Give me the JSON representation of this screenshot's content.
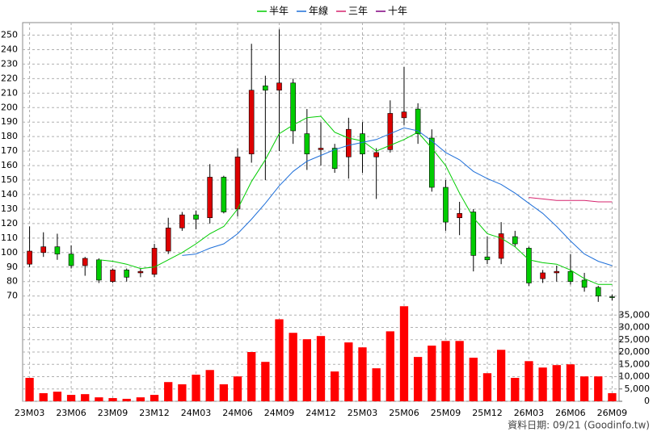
{
  "chart_data": {
    "type": "candlestick",
    "categories": [
      "23M03",
      null,
      null,
      "23M06",
      null,
      null,
      "23M09",
      null,
      null,
      "23M12",
      null,
      null,
      "24M03",
      null,
      null,
      "24M06",
      null,
      null,
      "24M09",
      null,
      null,
      "24M12",
      null,
      null,
      "25M03",
      null,
      null,
      "25M06",
      null,
      null,
      "25M09",
      null,
      null,
      "25M12",
      null,
      null,
      "26M03",
      null,
      null,
      "26M06",
      null,
      null,
      "26M09"
    ],
    "open": [
      92,
      100,
      104,
      99,
      91,
      95,
      80,
      88,
      86,
      85,
      101,
      117,
      126,
      124,
      152,
      130,
      168,
      215,
      212,
      217,
      182,
      171,
      172,
      166,
      182,
      166,
      171,
      193,
      199,
      179,
      145,
      124,
      128,
      97,
      96,
      111,
      103,
      82,
      86,
      87,
      81,
      76,
      69.5
    ],
    "high": [
      118,
      114,
      113,
      105,
      97,
      96,
      89,
      89,
      89,
      106,
      124,
      128,
      129,
      161,
      153,
      172,
      244,
      222,
      254,
      220,
      199,
      190,
      175,
      193,
      190,
      172,
      205,
      228,
      203,
      185,
      150,
      135,
      130,
      111,
      121,
      115,
      104,
      88,
      91,
      99,
      86,
      77,
      71
    ],
    "low": [
      90,
      97,
      95,
      89,
      84,
      79,
      79,
      80,
      83,
      83,
      99,
      115,
      116,
      120,
      127,
      125,
      162,
      150,
      170,
      175,
      157,
      160,
      155,
      151,
      155,
      137,
      169,
      188,
      175,
      142,
      115,
      112,
      87,
      92,
      92,
      104,
      77,
      79,
      80,
      78,
      73,
      66,
      67
    ],
    "close": [
      101,
      104,
      99,
      91,
      96,
      81,
      88,
      83,
      87,
      103,
      117,
      126,
      123,
      152,
      128,
      166,
      212,
      212,
      217,
      184,
      168,
      172,
      158,
      185,
      168,
      169,
      196,
      197,
      182,
      145,
      121,
      127,
      98,
      95,
      113,
      106,
      79,
      86,
      87,
      80,
      76,
      70,
      69
    ],
    "up_color": "#dd0000",
    "down_color": "#00cc00",
    "ylim": [
      62.8,
      258.3
    ],
    "yticks": [
      70,
      80,
      90,
      100,
      110,
      120,
      130,
      140,
      150,
      160,
      170,
      180,
      190,
      200,
      210,
      220,
      230,
      240,
      250
    ],
    "grid": true,
    "series": [
      {
        "name": "半年",
        "color": "#00cc00",
        "values": [
          null,
          null,
          null,
          null,
          null,
          95,
          94,
          92,
          89,
          90,
          95,
          100,
          106,
          113,
          118,
          130,
          149,
          164,
          182,
          188,
          193,
          194,
          183,
          179,
          177,
          170,
          174,
          178,
          183,
          172,
          160,
          141,
          124,
          113,
          110,
          104,
          95,
          93,
          92,
          88,
          82,
          78,
          78
        ]
      },
      {
        "name": "年線",
        "color": "#1e6fd9",
        "values": [
          null,
          null,
          null,
          null,
          null,
          null,
          null,
          null,
          null,
          null,
          null,
          98,
          99,
          103,
          106,
          113,
          123,
          134,
          146,
          156,
          163,
          167,
          171,
          174,
          176,
          178,
          182,
          186,
          184,
          177,
          169,
          164,
          156,
          151,
          147,
          141,
          134,
          127,
          118,
          108,
          99,
          94,
          91
        ]
      },
      {
        "name": "三年",
        "color": "#d6246e",
        "values": [
          null,
          null,
          null,
          null,
          null,
          null,
          null,
          null,
          null,
          null,
          null,
          null,
          null,
          null,
          null,
          null,
          null,
          null,
          null,
          null,
          null,
          null,
          null,
          null,
          null,
          null,
          null,
          null,
          null,
          null,
          null,
          null,
          null,
          null,
          null,
          null,
          138,
          137,
          136,
          136,
          136,
          135,
          135
        ]
      },
      {
        "name": "十年",
        "color": "#800080",
        "values": [
          null,
          null,
          null,
          null,
          null,
          null,
          null,
          null,
          null,
          null,
          null,
          null,
          null,
          null,
          null,
          null,
          null,
          null,
          null,
          null,
          null,
          null,
          null,
          null,
          null,
          null,
          null,
          null,
          null,
          null,
          null,
          null,
          null,
          null,
          null,
          null,
          null,
          null,
          null,
          null,
          null,
          null,
          null
        ]
      }
    ],
    "volume": {
      "color": "#ff0000",
      "values": [
        9500,
        3300,
        3900,
        2600,
        2900,
        1600,
        1300,
        1000,
        1600,
        2600,
        7800,
        6900,
        10800,
        12700,
        6900,
        10100,
        20000,
        16000,
        33300,
        27800,
        25200,
        26500,
        12100,
        23900,
        21900,
        13400,
        28400,
        38600,
        18000,
        22600,
        24500,
        24500,
        17700,
        11400,
        20900,
        9500,
        16300,
        13700,
        14700,
        15000,
        10100,
        10100,
        3300
      ],
      "ylim": [
        0,
        40000
      ],
      "yticks": [
        0,
        {
          "value": 5000,
          "label": "5,000"
        },
        {
          "value": 10000,
          "label": "10,000"
        },
        {
          "value": 15000,
          "label": "15,000"
        },
        {
          "value": 20000,
          "label": "20,000"
        },
        {
          "value": 25000,
          "label": "25,000"
        },
        {
          "value": 30000,
          "label": "30,000"
        },
        {
          "value": 35000,
          "label": "35,000"
        }
      ]
    },
    "source": "資料日期: 09/21 (Goodinfo.tw)"
  }
}
